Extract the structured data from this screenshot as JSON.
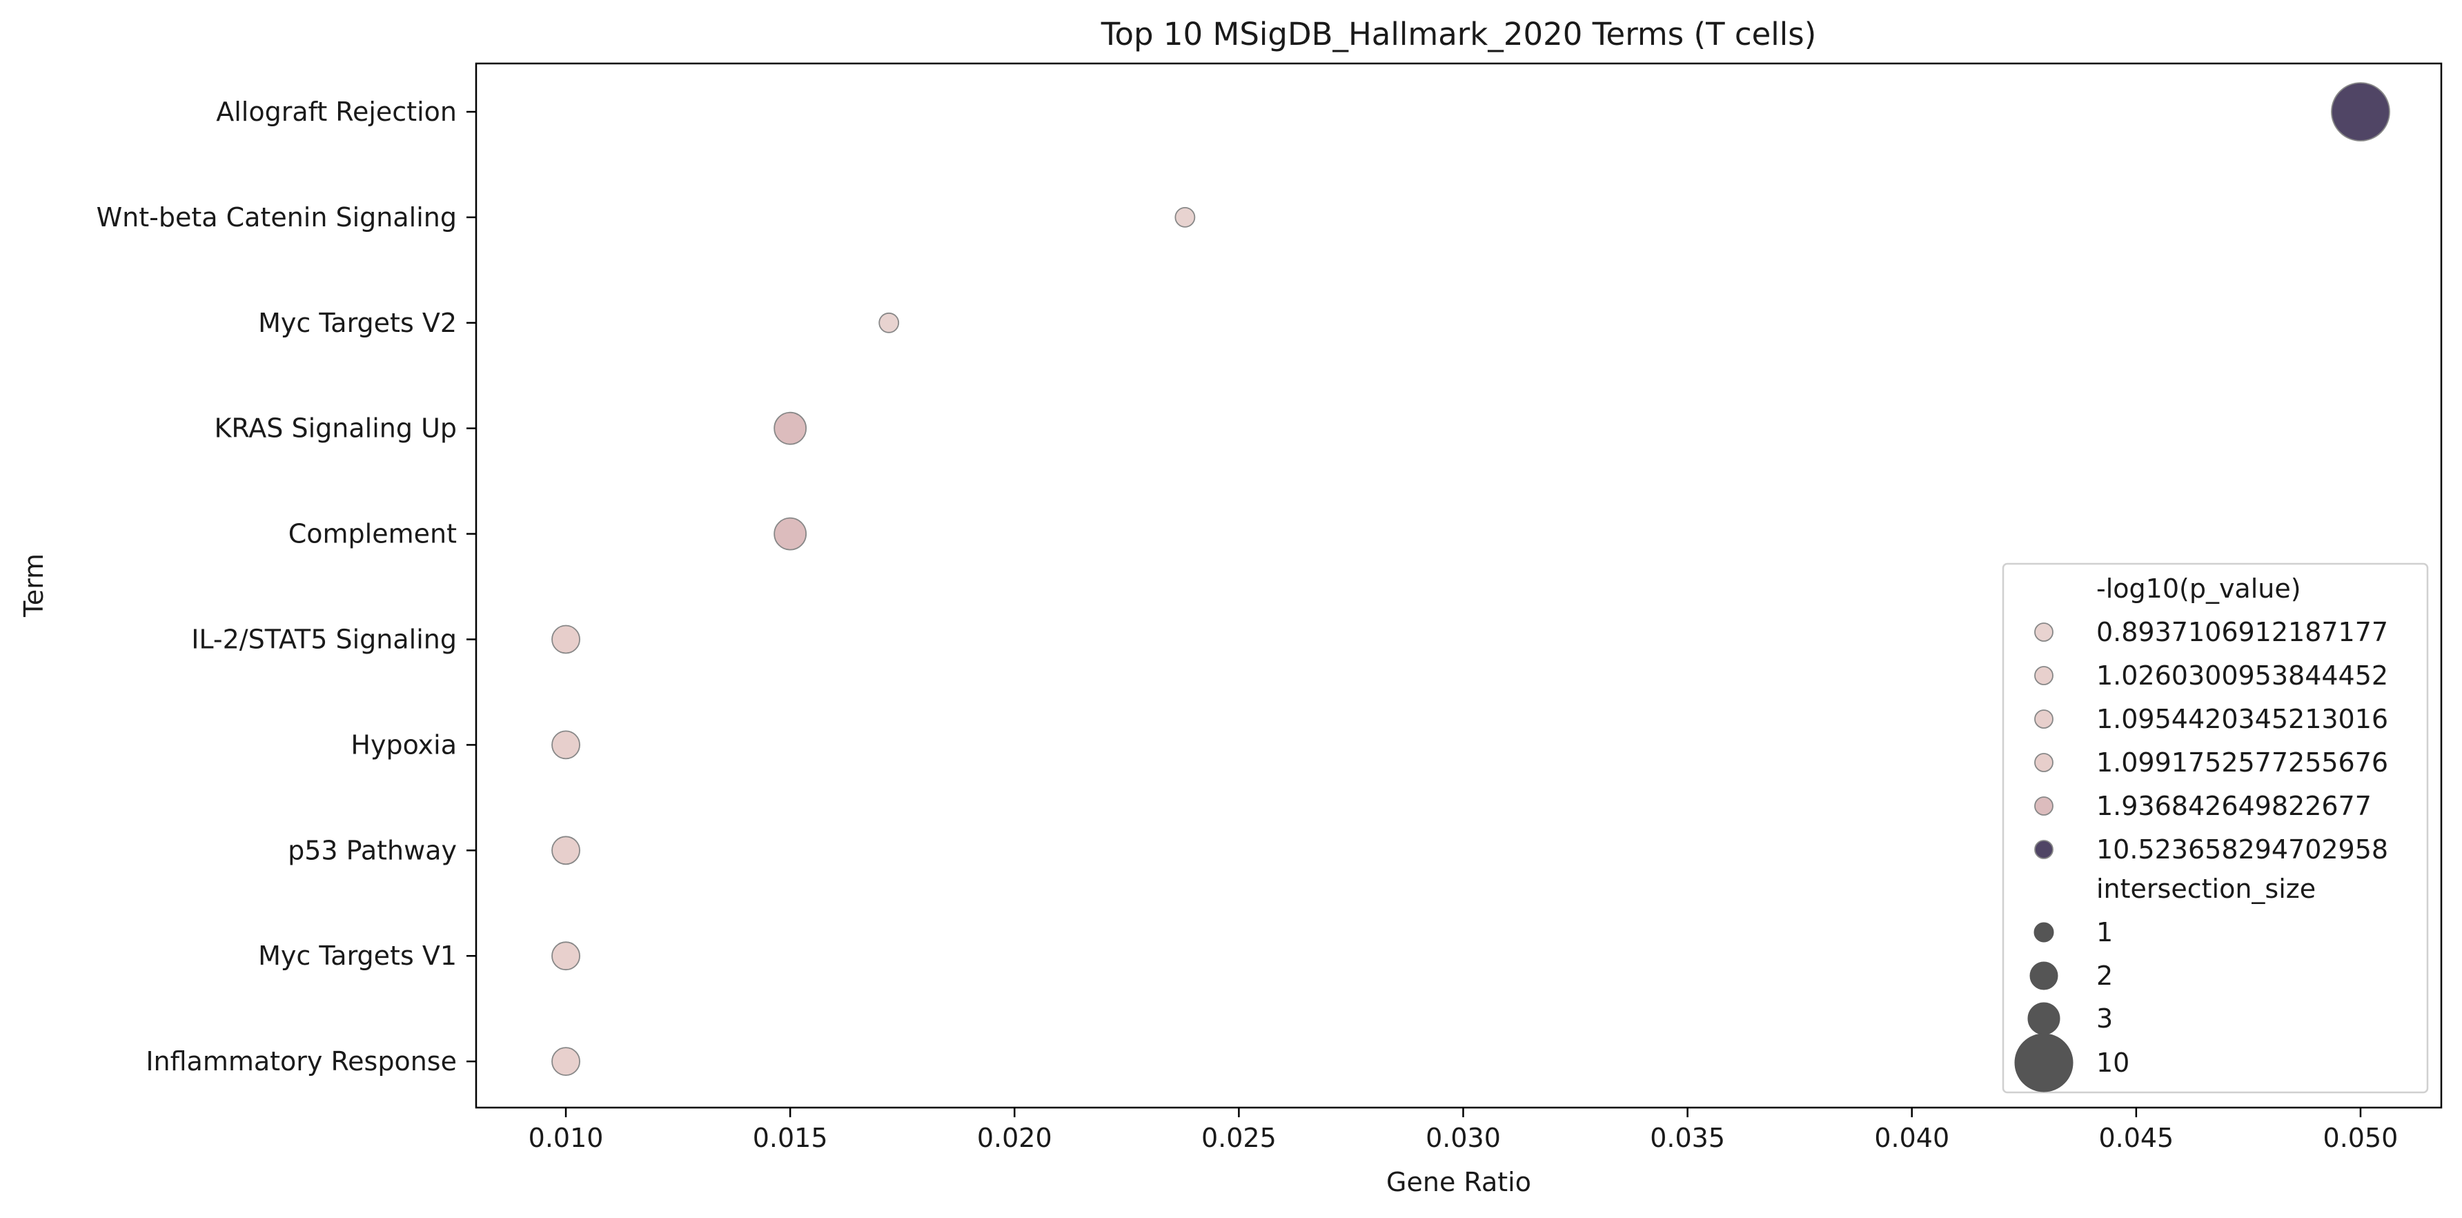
{
  "chart_data": {
    "type": "scatter",
    "title": "Top 10 MSigDB_Hallmark_2020 Terms (T cells)",
    "xlabel": "Gene Ratio",
    "ylabel": "Term",
    "xlim": [
      0.008,
      0.0518
    ],
    "x_ticks": [
      "0.010",
      "0.015",
      "0.020",
      "0.025",
      "0.030",
      "0.035",
      "0.040",
      "0.045",
      "0.050"
    ],
    "y_categories": [
      "Allograft Rejection",
      "Wnt-beta Catenin Signaling",
      "Myc Targets V2",
      "KRAS Signaling Up",
      "Complement",
      "IL-2/STAT5 Signaling",
      "Hypoxia",
      "p53 Pathway",
      "Myc Targets V1",
      "Inflammatory Response"
    ],
    "points": [
      {
        "term": "Allograft Rejection",
        "gene_ratio": 0.05,
        "neg_log10_p": 10.523658294702958,
        "intersection_size": 10
      },
      {
        "term": "Wnt-beta Catenin Signaling",
        "gene_ratio": 0.0238,
        "neg_log10_p": 0.8937106912187177,
        "intersection_size": 1
      },
      {
        "term": "Myc Targets V2",
        "gene_ratio": 0.0172,
        "neg_log10_p": 0.8937106912187177,
        "intersection_size": 1
      },
      {
        "term": "KRAS Signaling Up",
        "gene_ratio": 0.015,
        "neg_log10_p": 1.936842649822677,
        "intersection_size": 3
      },
      {
        "term": "Complement",
        "gene_ratio": 0.015,
        "neg_log10_p": 1.936842649822677,
        "intersection_size": 3
      },
      {
        "term": "IL-2/STAT5 Signaling",
        "gene_ratio": 0.01,
        "neg_log10_p": 1.0991752577255676,
        "intersection_size": 2
      },
      {
        "term": "Hypoxia",
        "gene_ratio": 0.01,
        "neg_log10_p": 1.0954420345213016,
        "intersection_size": 2
      },
      {
        "term": "p53 Pathway",
        "gene_ratio": 0.01,
        "neg_log10_p": 1.0954420345213016,
        "intersection_size": 2
      },
      {
        "term": "Myc Targets V1",
        "gene_ratio": 0.01,
        "neg_log10_p": 1.0260300953844452,
        "intersection_size": 2
      },
      {
        "term": "Inflammatory Response",
        "gene_ratio": 0.01,
        "neg_log10_p": 1.0260300953844452,
        "intersection_size": 2
      }
    ],
    "legend": {
      "placement": "lower-right",
      "hue_title": "-log10(p_value)",
      "hue_entries": [
        {
          "label": "0.8937106912187177",
          "color": "#e8d3d0"
        },
        {
          "label": "1.0260300953844452",
          "color": "#e8d0cd"
        },
        {
          "label": "1.0954420345213016",
          "color": "#e7cfcc"
        },
        {
          "label": "1.0991752577255676",
          "color": "#e7cecb"
        },
        {
          "label": "1.936842649822677",
          "color": "#dcbcbd"
        },
        {
          "label": "10.523658294702958",
          "color": "#504565"
        }
      ],
      "size_title": "intersection_size",
      "size_entries": [
        {
          "label": "1",
          "size": 1
        },
        {
          "label": "2",
          "size": 2
        },
        {
          "label": "3",
          "size": 3
        },
        {
          "label": "10",
          "size": 10
        }
      ]
    },
    "grid": false,
    "marker_edge_color": "#888888",
    "size_legend_color": "#555555"
  }
}
